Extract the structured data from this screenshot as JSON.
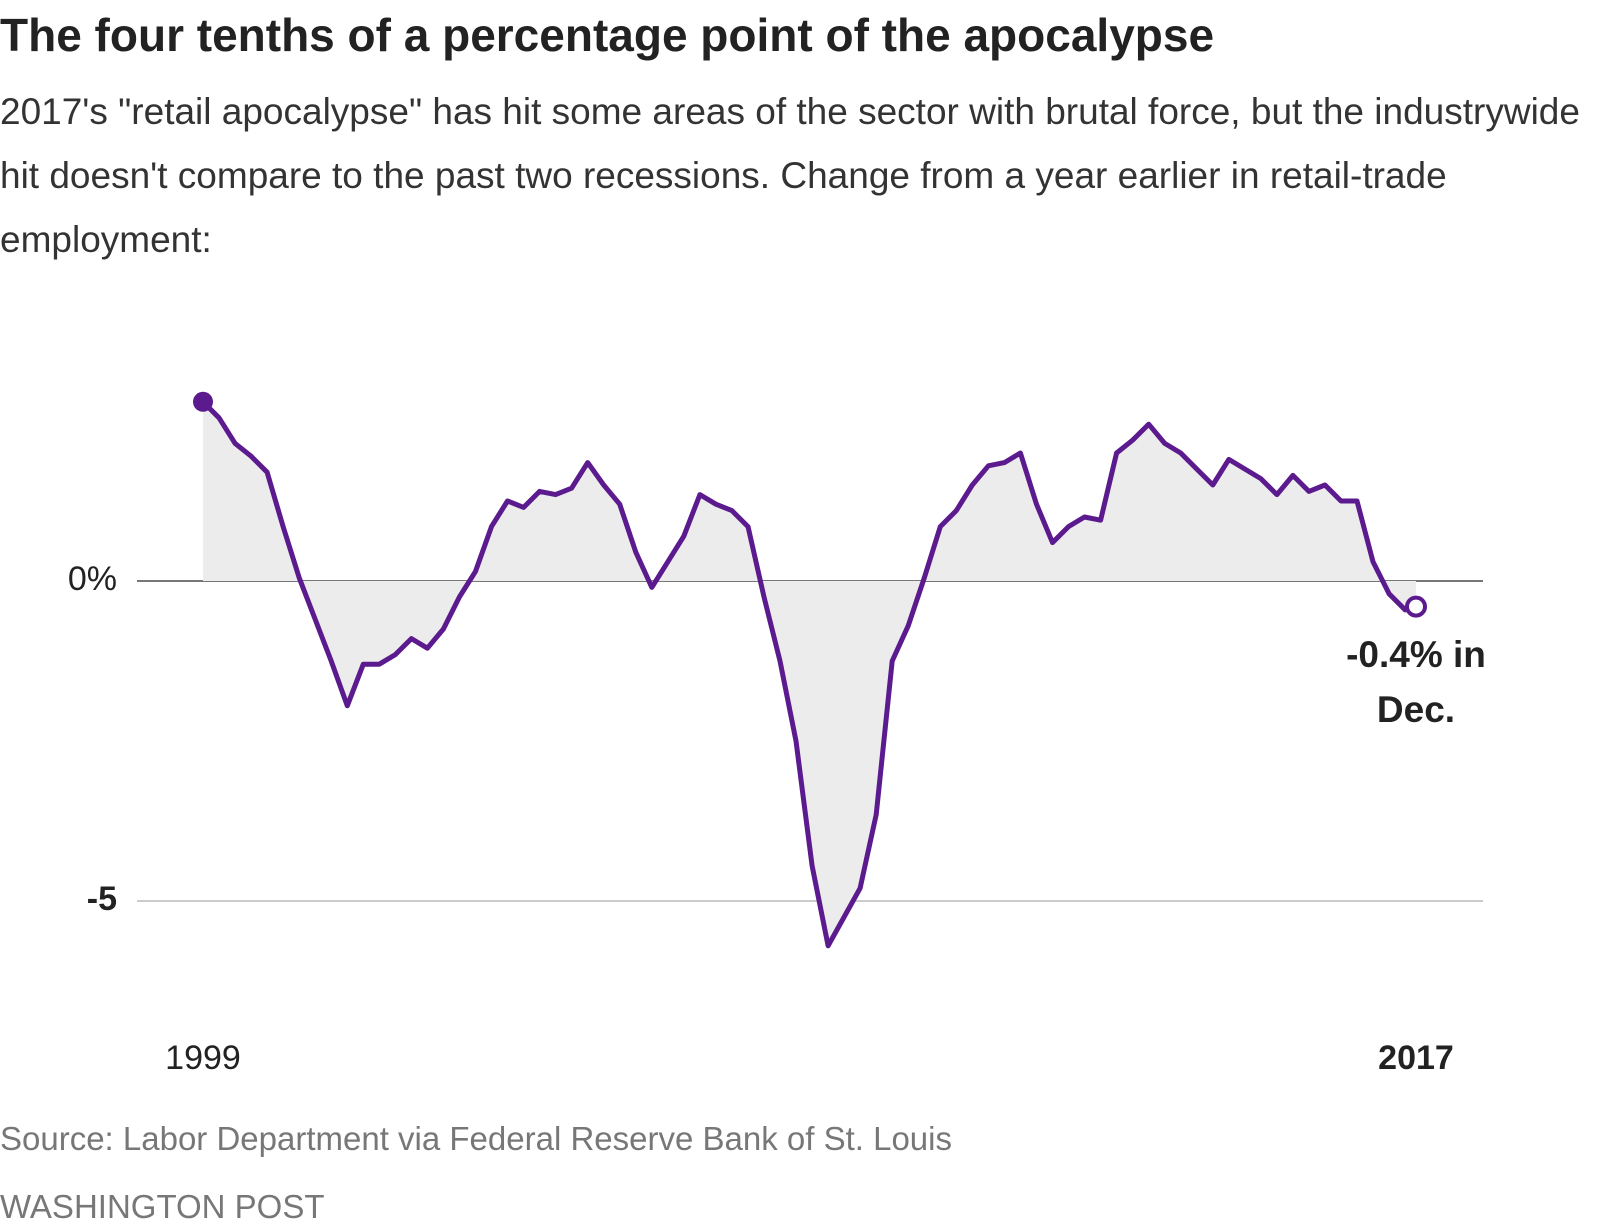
{
  "chart_data": {
    "type": "line",
    "title": "The four tenths of a percentage point of the apocalypse",
    "subtitle": "2017's \"retail apocalypse\" has hit some areas of the sector with brutal force, but the industrywide hit doesn't compare to the past two recessions. Change from a year earlier in retail-trade employment:",
    "source": "Source: Labor Department via Federal Reserve Bank of St. Louis",
    "credit": "WASHINGTON POST",
    "annotation": [
      "-0.4% in",
      "Dec."
    ],
    "color": "#5b1a8e",
    "area_color": "#ececec",
    "grid": true,
    "x": [
      1999,
      1999.25,
      1999.5,
      1999.75,
      2000,
      2000.25,
      2000.5,
      2000.75,
      2001,
      2001.25,
      2001.5,
      2001.75,
      2002,
      2002.25,
      2002.5,
      2002.75,
      2003,
      2003.25,
      2003.5,
      2003.75,
      2004,
      2004.25,
      2004.5,
      2004.75,
      2005,
      2005.25,
      2005.5,
      2005.75,
      2006,
      2006.25,
      2006.5,
      2006.75,
      2007,
      2007.25,
      2007.5,
      2007.75,
      2008,
      2008.25,
      2008.5,
      2008.75,
      2009,
      2009.25,
      2009.5,
      2009.75,
      2010,
      2010.25,
      2010.5,
      2010.75,
      2011,
      2011.25,
      2011.5,
      2011.75,
      2012,
      2012.25,
      2012.5,
      2012.75,
      2013,
      2013.25,
      2013.5,
      2013.75,
      2014,
      2014.25,
      2014.5,
      2014.75,
      2015,
      2015.25,
      2015.5,
      2015.75,
      2016,
      2016.25,
      2016.5,
      2016.75,
      2017,
      2017.25,
      2017.5,
      2017.75,
      2017.92
    ],
    "values": [
      2.8,
      2.55,
      2.15,
      1.95,
      1.7,
      0.85,
      0.05,
      -0.6,
      -1.25,
      -1.95,
      -1.3,
      -1.3,
      -1.15,
      -0.9,
      -1.05,
      -0.75,
      -0.25,
      0.15,
      0.85,
      1.25,
      1.15,
      1.4,
      1.35,
      1.45,
      1.85,
      1.5,
      1.2,
      0.45,
      -0.1,
      0.3,
      0.7,
      1.35,
      1.2,
      1.1,
      0.85,
      -0.25,
      -1.25,
      -2.5,
      -4.45,
      -5.7,
      -5.25,
      -4.8,
      -3.65,
      -1.25,
      -0.7,
      0.05,
      0.85,
      1.1,
      1.5,
      1.8,
      1.85,
      2.0,
      1.2,
      0.6,
      0.85,
      1.0,
      0.95,
      2.0,
      2.2,
      2.45,
      2.15,
      2.0,
      1.75,
      1.5,
      1.9,
      1.75,
      1.6,
      1.35,
      1.65,
      1.4,
      1.5,
      1.25,
      1.25,
      0.3,
      -0.2,
      -0.45,
      -0.4
    ],
    "xlim": [
      1999,
      2017.92
    ],
    "xticks": [
      1999,
      {
        "value": 2017.92,
        "label": "2017"
      }
    ],
    "ylim": [
      -6,
      3
    ],
    "yticks": [
      {
        "value": 0,
        "label": "0%"
      },
      -5
    ]
  }
}
